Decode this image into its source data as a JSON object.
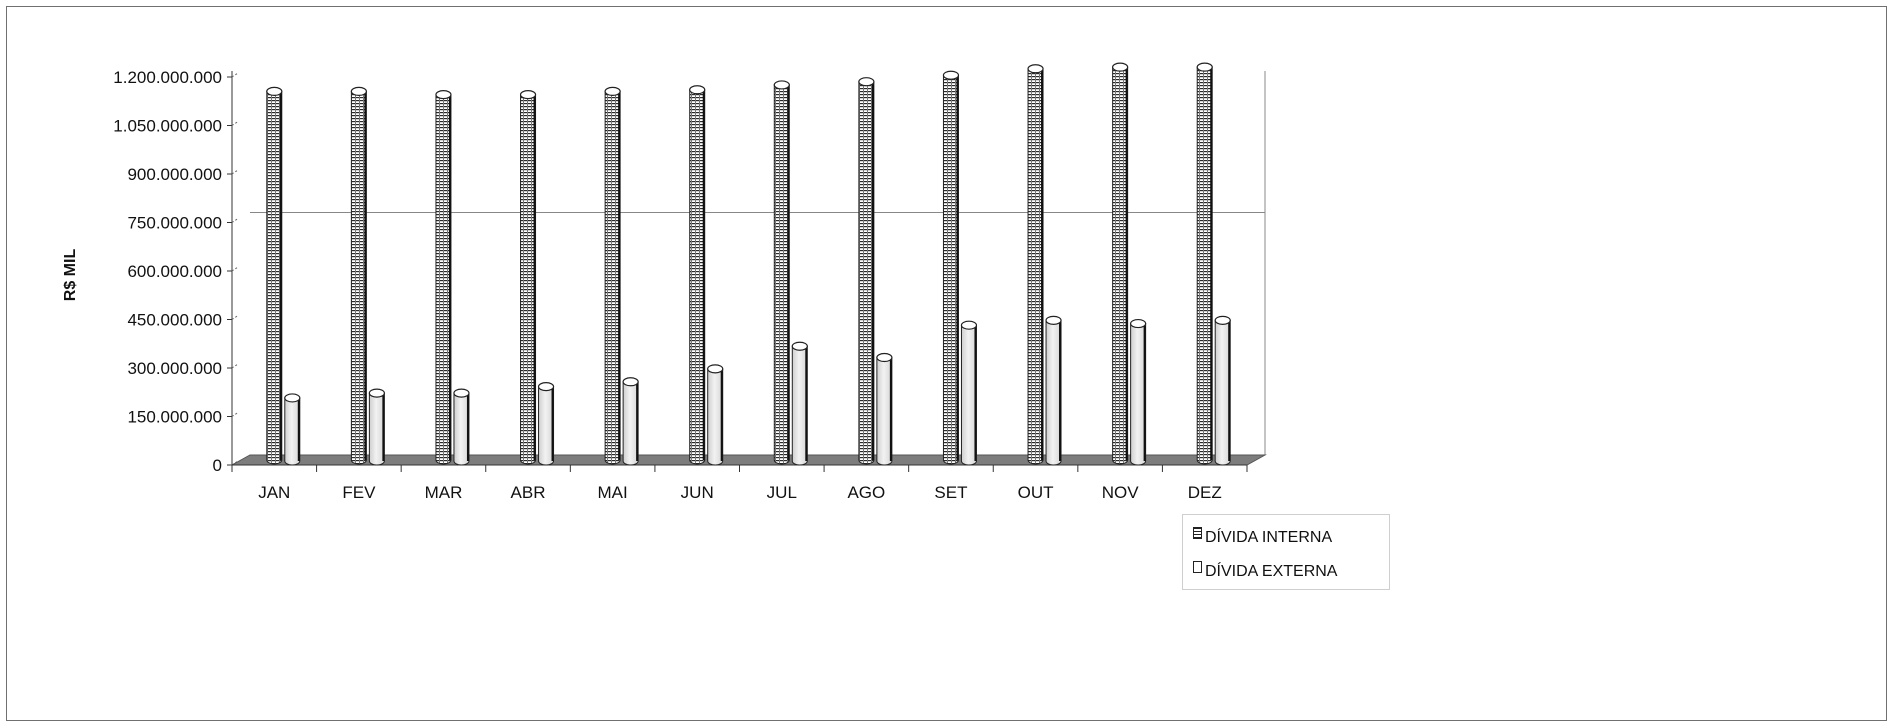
{
  "chart_data": {
    "type": "bar",
    "title": "",
    "xlabel": "",
    "ylabel": "R$ MIL",
    "categories": [
      "JAN",
      "FEV",
      "MAR",
      "ABR",
      "MAI",
      "JUN",
      "JUL",
      "AGO",
      "SET",
      "OUT",
      "NOV",
      "DEZ"
    ],
    "series": [
      {
        "name": "DÍVIDA INTERNA",
        "pattern": "hatched",
        "color": "#3a3a3a",
        "values": [
          1140000000,
          1140000000,
          1130000000,
          1130000000,
          1140000000,
          1145000000,
          1160000000,
          1170000000,
          1190000000,
          1210000000,
          1215000000,
          1215000000
        ]
      },
      {
        "name": "DÍVIDA EXTERNA",
        "pattern": "light",
        "color": "#e4e4e4",
        "values": [
          195000000,
          210000000,
          210000000,
          230000000,
          245000000,
          285000000,
          355000000,
          320000000,
          420000000,
          435000000,
          425000000,
          435000000
        ]
      }
    ],
    "yticks": [
      "0",
      "150.000.000",
      "300.000.000",
      "450.000.000",
      "600.000.000",
      "750.000.000",
      "900.000.000",
      "1.050.000.000",
      "1.200.000.000"
    ],
    "ylim": [
      0,
      1200000000
    ],
    "ytick_step": 150000000,
    "gridline_values": [
      750000000
    ],
    "legend_position": "bottom-right",
    "style": "3d-cylinder"
  }
}
